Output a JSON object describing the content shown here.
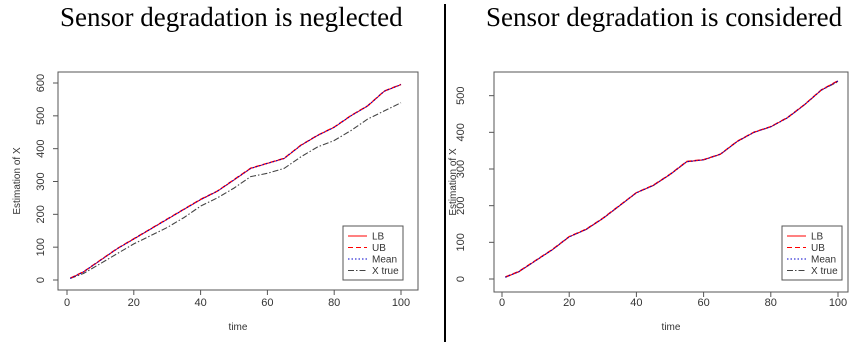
{
  "panels": [
    {
      "title": "Sensor degradation is neglected",
      "xlabel": "time",
      "ylabel": "Estimation of X",
      "legend": [
        "LB",
        "UB",
        "Mean",
        "X true"
      ],
      "xticks": [
        0,
        20,
        40,
        60,
        80,
        100
      ],
      "yticks": [
        0,
        100,
        200,
        300,
        400,
        500,
        600
      ]
    },
    {
      "title": "Sensor degradation is considered",
      "xlabel": "time",
      "ylabel": "Estimation of X",
      "legend": [
        "LB",
        "UB",
        "Mean",
        "X true"
      ],
      "xticks": [
        0,
        20,
        40,
        60,
        80,
        100
      ],
      "yticks": [
        0,
        100,
        200,
        300,
        400,
        500
      ]
    }
  ],
  "chart_data": [
    {
      "type": "line",
      "title": "Sensor degradation is neglected",
      "xlabel": "time",
      "ylabel": "Estimation of X",
      "xlim": [
        0,
        100
      ],
      "ylim": [
        0,
        600
      ],
      "legend_position": "bottom-right",
      "grid": false,
      "x": [
        1,
        5,
        10,
        15,
        20,
        25,
        30,
        35,
        40,
        45,
        50,
        55,
        60,
        65,
        70,
        75,
        80,
        85,
        90,
        95,
        100
      ],
      "series": [
        {
          "name": "LB",
          "color": "#ff0000",
          "style": "solid",
          "values": [
            5,
            25,
            60,
            95,
            125,
            155,
            185,
            215,
            245,
            270,
            305,
            340,
            355,
            370,
            410,
            440,
            465,
            500,
            530,
            575,
            595
          ]
        },
        {
          "name": "UB",
          "color": "#ff0000",
          "style": "dashed",
          "values": [
            6,
            26,
            61,
            96,
            126,
            156,
            186,
            216,
            246,
            271,
            306,
            341,
            356,
            371,
            411,
            441,
            466,
            501,
            531,
            576,
            596
          ]
        },
        {
          "name": "Mean",
          "color": "#0000cc",
          "style": "dotted",
          "values": [
            5,
            25,
            60,
            95,
            125,
            155,
            185,
            215,
            245,
            270,
            305,
            340,
            355,
            370,
            410,
            440,
            465,
            500,
            530,
            575,
            595
          ]
        },
        {
          "name": "X true",
          "color": "#444444",
          "style": "dashdot",
          "values": [
            5,
            20,
            50,
            80,
            110,
            135,
            160,
            190,
            225,
            250,
            280,
            315,
            325,
            340,
            375,
            405,
            425,
            455,
            490,
            515,
            540
          ]
        }
      ]
    },
    {
      "type": "line",
      "title": "Sensor degradation is considered",
      "xlabel": "time",
      "ylabel": "Estimation of X",
      "xlim": [
        0,
        100
      ],
      "ylim": [
        0,
        540
      ],
      "legend_position": "bottom-right",
      "grid": false,
      "x": [
        1,
        5,
        10,
        15,
        20,
        25,
        30,
        35,
        40,
        45,
        50,
        55,
        60,
        65,
        70,
        75,
        80,
        85,
        90,
        95,
        100
      ],
      "series": [
        {
          "name": "LB",
          "color": "#ff0000",
          "style": "solid",
          "values": [
            5,
            20,
            50,
            80,
            115,
            135,
            165,
            200,
            235,
            255,
            285,
            320,
            325,
            340,
            375,
            400,
            415,
            440,
            475,
            515,
            540
          ]
        },
        {
          "name": "UB",
          "color": "#ff0000",
          "style": "dashed",
          "values": [
            6,
            21,
            51,
            81,
            116,
            136,
            166,
            201,
            236,
            256,
            286,
            321,
            326,
            341,
            376,
            401,
            416,
            441,
            476,
            516,
            541
          ]
        },
        {
          "name": "Mean",
          "color": "#0000cc",
          "style": "dotted",
          "values": [
            5,
            20,
            50,
            80,
            115,
            135,
            165,
            200,
            235,
            255,
            285,
            320,
            325,
            340,
            375,
            400,
            415,
            440,
            475,
            515,
            540
          ]
        },
        {
          "name": "X true",
          "color": "#444444",
          "style": "dashdot",
          "values": [
            5,
            20,
            50,
            80,
            115,
            135,
            165,
            200,
            235,
            255,
            285,
            320,
            325,
            340,
            375,
            400,
            415,
            440,
            475,
            515,
            538
          ]
        }
      ]
    }
  ]
}
